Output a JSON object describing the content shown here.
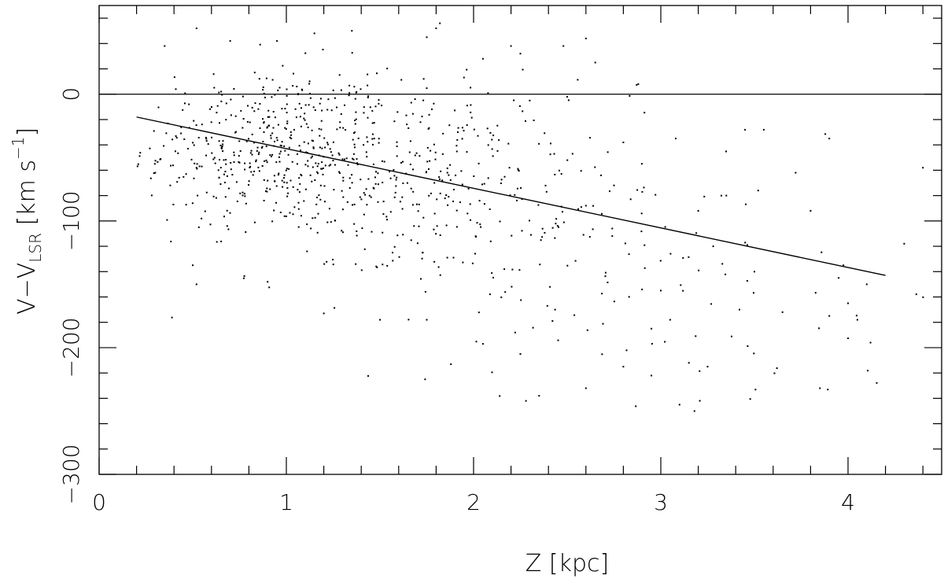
{
  "chart_data": {
    "type": "scatter",
    "title": "",
    "xlabel": "Z [kpc]",
    "ylabel": {
      "main": "V−V",
      "subscript": "LSR",
      "unit_open": " [km s",
      "superscript": "−1",
      "unit_close": "]"
    },
    "xlim": [
      0,
      4.5
    ],
    "ylim": [
      -300,
      70
    ],
    "x_ticks": [
      {
        "value": 0,
        "label": "0"
      },
      {
        "value": 1,
        "label": "1"
      },
      {
        "value": 2,
        "label": "2"
      },
      {
        "value": 3,
        "label": "3"
      },
      {
        "value": 4,
        "label": "4"
      }
    ],
    "y_ticks": [
      {
        "value": -300,
        "label": "−300"
      },
      {
        "value": -200,
        "label": "−200"
      },
      {
        "value": -100,
        "label": "−100"
      },
      {
        "value": 0,
        "label": "0"
      }
    ],
    "x_minor_step": 0.2,
    "y_minor_step": 20,
    "reference_line_y": 0,
    "fit_line": {
      "x": [
        0.2,
        4.2
      ],
      "y": [
        -18,
        -143
      ]
    },
    "grid": false,
    "point_clusters": [
      {
        "cx": 0.9,
        "cy": -42,
        "sx": 0.33,
        "sy": 32,
        "n": 430
      },
      {
        "cx": 1.65,
        "cy": -68,
        "sx": 0.42,
        "sy": 40,
        "n": 330
      },
      {
        "cx": 2.45,
        "cy": -115,
        "sx": 0.45,
        "sy": 50,
        "n": 90
      },
      {
        "cx": 3.35,
        "cy": -150,
        "sx": 0.6,
        "sy": 65,
        "n": 55
      }
    ],
    "points": [
      [
        0.35,
        38
      ],
      [
        0.52,
        52
      ],
      [
        0.7,
        42
      ],
      [
        0.95,
        42
      ],
      [
        1.15,
        48
      ],
      [
        1.35,
        50
      ],
      [
        1.75,
        45
      ],
      [
        1.8,
        52
      ],
      [
        1.82,
        56
      ],
      [
        2.05,
        28
      ],
      [
        2.2,
        38
      ],
      [
        2.25,
        32
      ],
      [
        2.48,
        38
      ],
      [
        2.6,
        44
      ],
      [
        2.65,
        25
      ],
      [
        2.88,
        8
      ],
      [
        0.48,
        -8
      ],
      [
        0.3,
        -62
      ],
      [
        0.38,
        -72
      ],
      [
        0.5,
        -135
      ],
      [
        0.52,
        -150
      ],
      [
        0.9,
        -148
      ],
      [
        1.2,
        -173
      ],
      [
        1.5,
        -178
      ],
      [
        1.75,
        -178
      ],
      [
        2.05,
        -197
      ],
      [
        2.25,
        -205
      ],
      [
        2.28,
        -242
      ],
      [
        2.35,
        -238
      ],
      [
        2.6,
        -232
      ],
      [
        2.8,
        -215
      ],
      [
        2.95,
        -222
      ],
      [
        3.1,
        -245
      ],
      [
        3.15,
        -212
      ],
      [
        3.18,
        -250
      ],
      [
        3.25,
        -215
      ],
      [
        3.85,
        -232
      ],
      [
        3.9,
        -175
      ],
      [
        4.05,
        -178
      ],
      [
        4.12,
        -196
      ],
      [
        4.3,
        -118
      ],
      [
        4.4,
        -58
      ],
      [
        3.9,
        -35
      ],
      [
        3.8,
        -92
      ],
      [
        3.72,
        -62
      ],
      [
        3.55,
        -28
      ],
      [
        3.52,
        -76
      ],
      [
        3.45,
        -28
      ],
      [
        3.28,
        -120
      ],
      [
        3.0,
        -155
      ],
      [
        3.08,
        -35
      ],
      [
        2.8,
        -38
      ],
      [
        2.75,
        -72
      ],
      [
        2.3,
        -5
      ],
      [
        2.5,
        -2
      ],
      [
        2.6,
        -88
      ],
      [
        3.5,
        -140
      ],
      [
        3.42,
        -170
      ],
      [
        3.65,
        -172
      ],
      [
        3.95,
        -145
      ],
      [
        4.0,
        -165
      ],
      [
        4.1,
        -150
      ],
      [
        3.2,
        -92
      ],
      [
        3.35,
        -80
      ],
      [
        2.95,
        -185
      ],
      [
        3.05,
        -178
      ]
    ]
  }
}
